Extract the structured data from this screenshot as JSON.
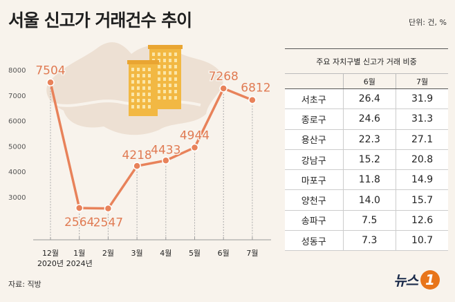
{
  "title": "서울 신고가 거래건수 추이",
  "unit": "단위: 건, %",
  "source": "자료: 직방",
  "logo": {
    "text": "뉴스",
    "mark": "1"
  },
  "colors": {
    "line": "#e8825a",
    "label": "#e07a52",
    "map": "#ede0d3",
    "building": "#f2b843"
  },
  "chart_data": [
    {
      "type": "line",
      "categories": [
        "12월\n2020년",
        "1월\n2024년",
        "2월",
        "3월",
        "4월",
        "5월",
        "6월",
        "7월"
      ],
      "values": [
        7504,
        2564,
        2547,
        4218,
        4433,
        4944,
        7268,
        6812
      ],
      "yticks": [
        8000,
        7000,
        6000,
        5000,
        4000,
        3000
      ],
      "ylim": [
        2000,
        8200
      ],
      "grid": false
    },
    {
      "type": "table",
      "caption": "주요 자치구별 신고가 거래 비중",
      "columns": [
        "",
        "6월",
        "7월"
      ],
      "rows": [
        [
          "서초구",
          "26.4",
          "31.9"
        ],
        [
          "종로구",
          "24.6",
          "31.3"
        ],
        [
          "용산구",
          "22.3",
          "27.1"
        ],
        [
          "강남구",
          "15.2",
          "20.8"
        ],
        [
          "마포구",
          "11.8",
          "14.9"
        ],
        [
          "양천구",
          "14.0",
          "15.7"
        ],
        [
          "송파구",
          "7.5",
          "12.6"
        ],
        [
          "성동구",
          "7.3",
          "10.7"
        ]
      ]
    }
  ]
}
